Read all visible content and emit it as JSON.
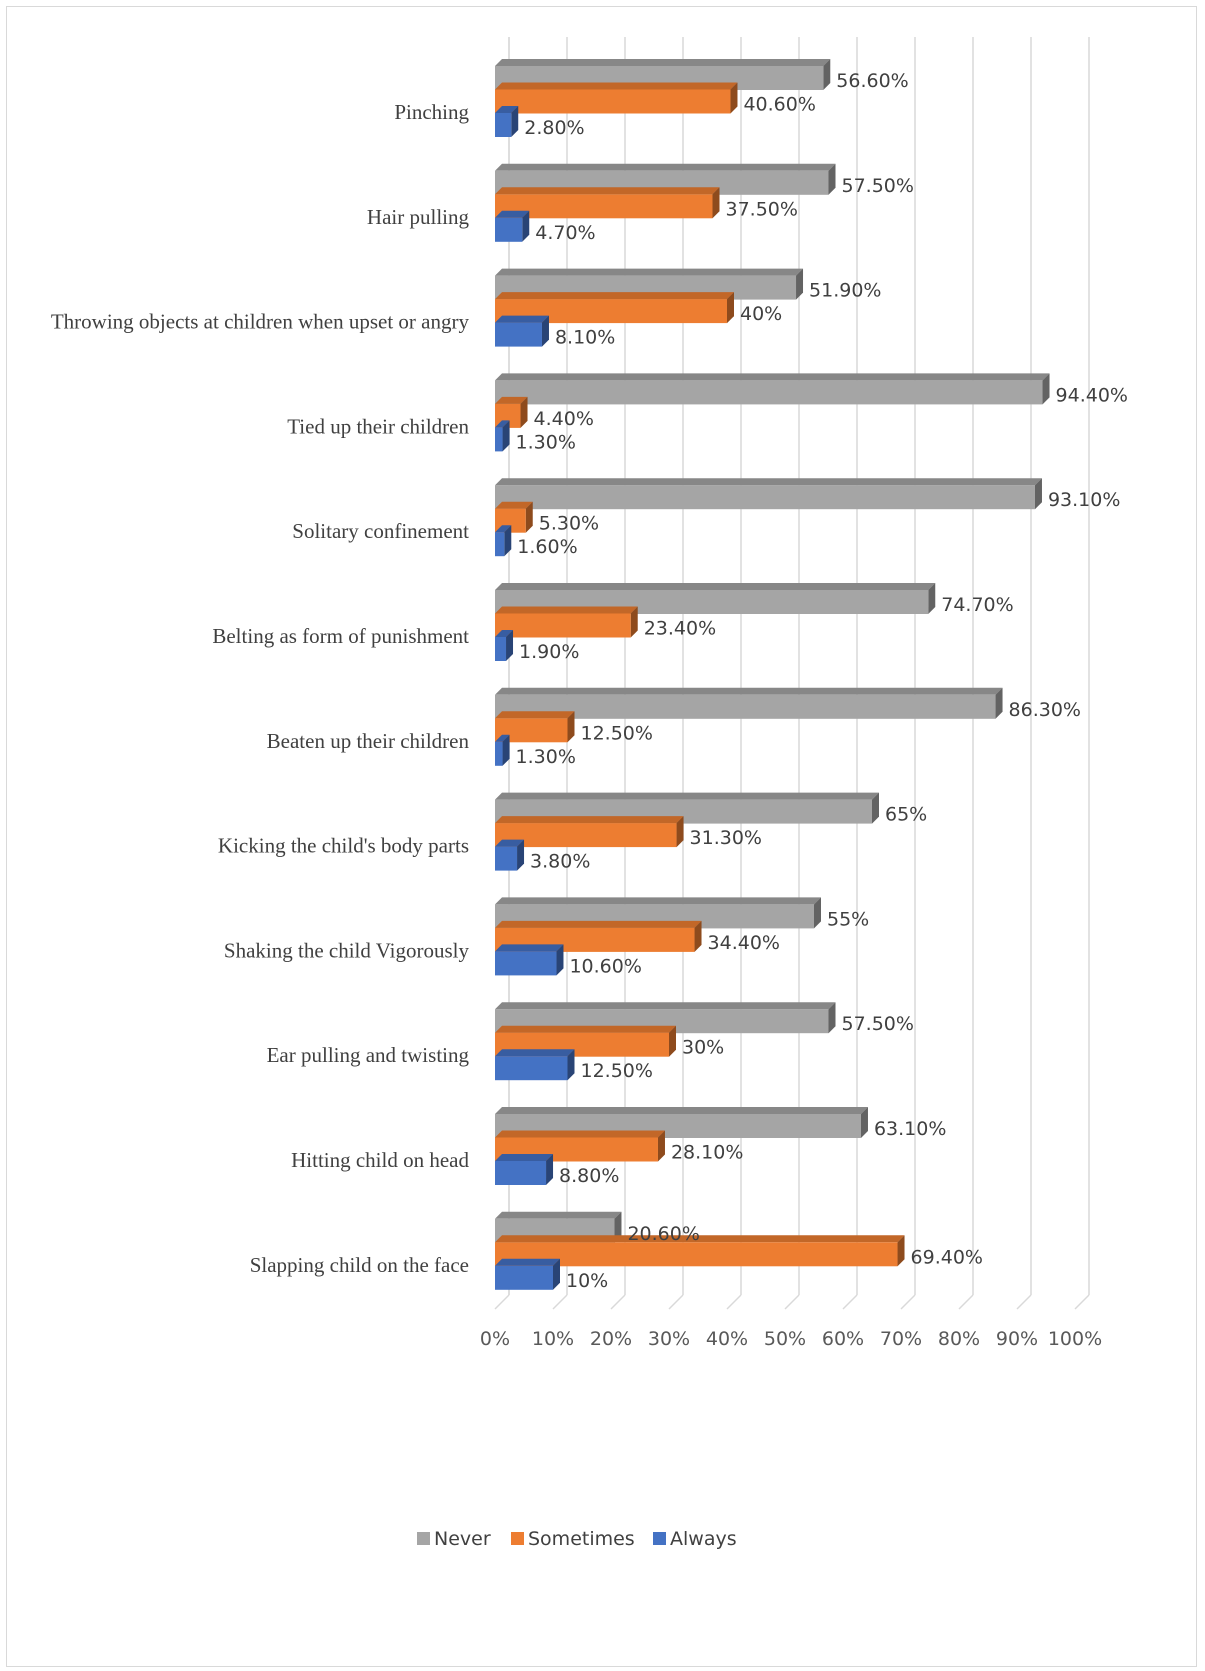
{
  "chart_data": {
    "type": "bar",
    "orientation": "horizontal",
    "style": "3d-clustered",
    "title": "",
    "xlabel": "",
    "ylabel": "",
    "xlim": [
      0,
      100
    ],
    "x_ticks": [
      "0%",
      "10%",
      "20%",
      "30%",
      "40%",
      "50%",
      "60%",
      "70%",
      "80%",
      "90%",
      "100%"
    ],
    "grid": true,
    "legend_position": "bottom",
    "categories": [
      "Pinching",
      "Hair  pulling",
      "Throwing  objects at children when upset or angry",
      "Tied up their children",
      "Solitary confinement",
      "Belting as form of punishment",
      "Beaten up their children",
      "Kicking the child's body parts",
      "Shaking the child Vigorously",
      "Ear pulling and twisting",
      "Hitting  child on  head",
      "Slapping child on the face"
    ],
    "series": [
      {
        "name": "Never",
        "color": "#a5a5a5",
        "values": [
          56.6,
          57.5,
          51.9,
          94.4,
          93.1,
          74.7,
          86.3,
          65,
          55,
          57.5,
          63.1,
          20.6
        ],
        "labels": [
          "56.60%",
          "57.50%",
          "51.90%",
          "94.40%",
          "93.10%",
          "74.70%",
          "86.30%",
          "65%",
          "55%",
          "57.50%",
          "63.10%",
          "20.60%"
        ]
      },
      {
        "name": "Sometimes",
        "color": "#ed7d31",
        "values": [
          40.6,
          37.5,
          40,
          4.4,
          5.3,
          23.4,
          12.5,
          31.3,
          34.4,
          30,
          28.1,
          69.4
        ],
        "labels": [
          "40.60%",
          "37.50%",
          "40%",
          "4.40%",
          "5.30%",
          "23.40%",
          "12.50%",
          "31.30%",
          "34.40%",
          "30%",
          "28.10%",
          "69.40%"
        ]
      },
      {
        "name": "Always",
        "color": "#4472c4",
        "values": [
          2.8,
          4.7,
          8.1,
          1.3,
          1.6,
          1.9,
          1.3,
          3.8,
          10.6,
          12.5,
          8.8,
          10
        ],
        "labels": [
          "2.80%",
          "4.70%",
          "8.10%",
          "1.30%",
          "1.60%",
          "1.90%",
          "1.30%",
          "3.80%",
          "10.60%",
          "12.50%",
          "8.80%",
          "10%"
        ]
      }
    ]
  }
}
